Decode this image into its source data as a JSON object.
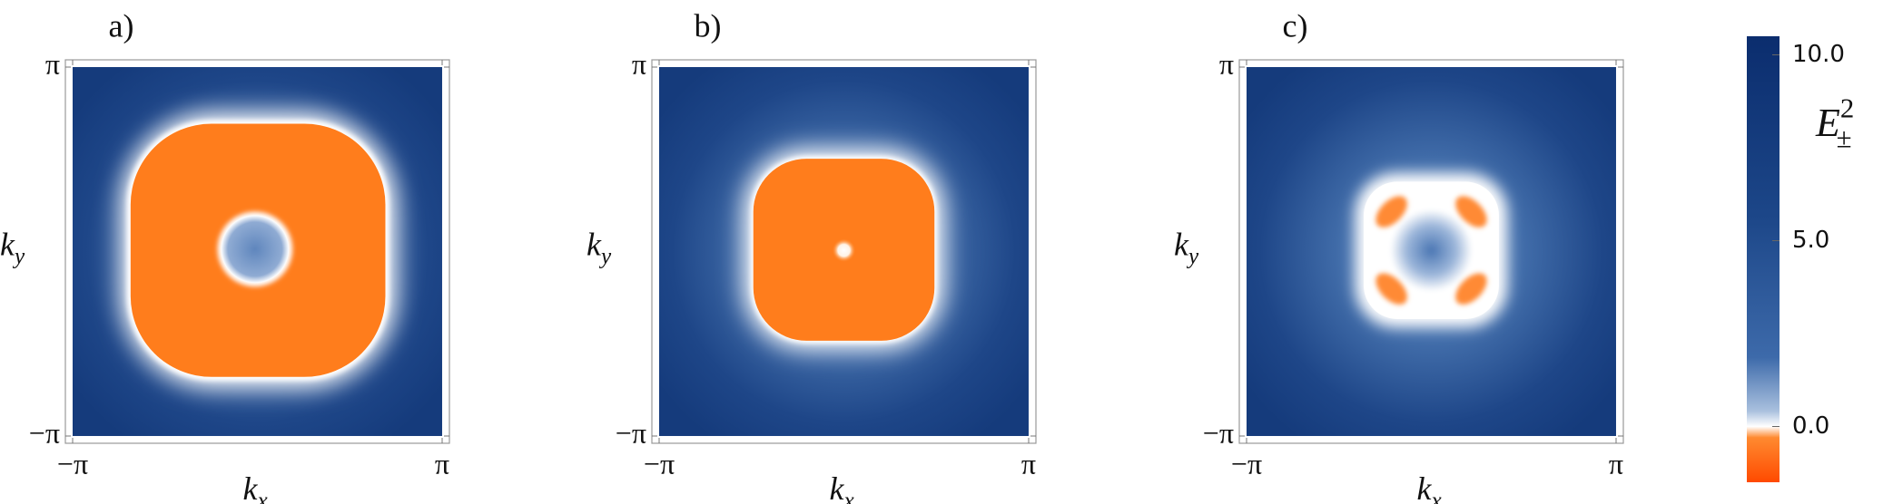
{
  "chart_data": [
    {
      "type": "heatmap",
      "title": "a)",
      "xlabel": {
        "base": "k",
        "sub": "x"
      },
      "ylabel": {
        "base": "k",
        "sub": "y"
      },
      "xlim": [
        -3.1416,
        3.1416
      ],
      "ylim": [
        -3.1416,
        3.1416
      ],
      "xticks": [
        {
          "value": -3.1416,
          "label": "−π"
        },
        {
          "value": 3.1416,
          "label": "π"
        }
      ],
      "yticks": [
        {
          "value": -3.1416,
          "label": "−π"
        },
        {
          "value": 3.1416,
          "label": "π"
        }
      ]
    },
    {
      "type": "heatmap",
      "title": "b)",
      "xlabel": {
        "base": "k",
        "sub": "x"
      },
      "ylabel": {
        "base": "k",
        "sub": "y"
      },
      "xlim": [
        -3.1416,
        3.1416
      ],
      "ylim": [
        -3.1416,
        3.1416
      ],
      "xticks": [
        {
          "value": -3.1416,
          "label": "−π"
        },
        {
          "value": 3.1416,
          "label": "π"
        }
      ],
      "yticks": [
        {
          "value": -3.1416,
          "label": "−π"
        },
        {
          "value": 3.1416,
          "label": "π"
        }
      ]
    },
    {
      "type": "heatmap",
      "title": "c)",
      "xlabel": {
        "base": "k",
        "sub": "x"
      },
      "ylabel": {
        "base": "k",
        "sub": "y"
      },
      "xlim": [
        -3.1416,
        3.1416
      ],
      "ylim": [
        -3.1416,
        3.1416
      ],
      "xticks": [
        {
          "value": -3.1416,
          "label": "−π"
        },
        {
          "value": 3.1416,
          "label": "π"
        }
      ],
      "yticks": [
        {
          "value": -3.1416,
          "label": "−π"
        },
        {
          "value": 3.1416,
          "label": "π"
        }
      ]
    }
  ],
  "colorbar": {
    "label": {
      "base": "E",
      "sub": "±",
      "sup": "2"
    },
    "clim": [
      -1.5,
      10.5
    ],
    "ticks": [
      {
        "value": 10,
        "label": "10.0"
      },
      {
        "value": 5,
        "label": "5.0"
      },
      {
        "value": 0,
        "label": "0.0"
      }
    ]
  }
}
